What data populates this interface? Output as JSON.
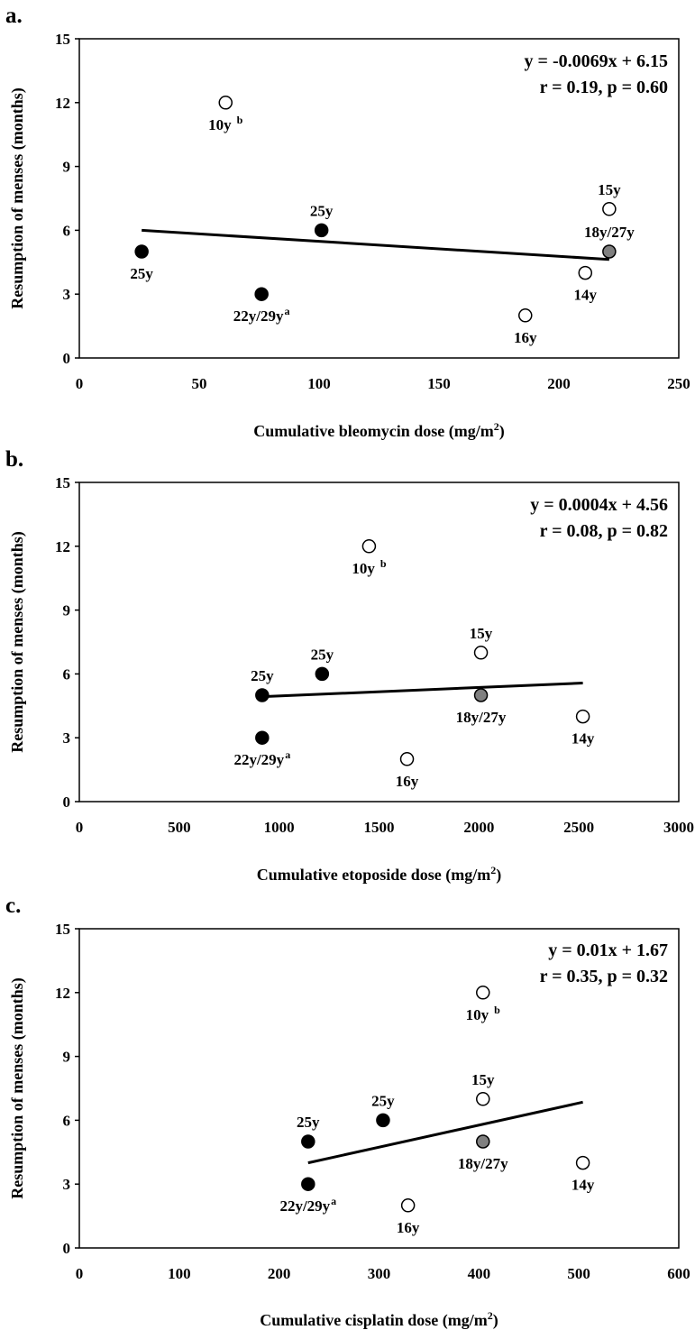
{
  "chart_data": [
    {
      "panel": "a.",
      "type": "scatter",
      "xlabel": "Cumulative bleomycin dose (mg/m",
      "xlabel_sup": "2",
      "xlabel_end": ")",
      "ylabel": "Resumption of menses (months)",
      "xlim": [
        0,
        250
      ],
      "ylim": [
        0,
        15
      ],
      "xticks": [
        0,
        50,
        100,
        150,
        200,
        250
      ],
      "yticks": [
        0,
        3,
        6,
        9,
        12,
        15
      ],
      "equation": "y = -0.0069x + 6.15",
      "stats": "r = 0.19, p = 0.60",
      "trendline": {
        "x": [
          26,
          221
        ],
        "y": [
          6.0,
          4.63
        ]
      },
      "points": [
        {
          "x": 61,
          "y": 12,
          "fill": "open",
          "label": "10y",
          "sup": "b",
          "label_pos": "below"
        },
        {
          "x": 26,
          "y": 5,
          "fill": "black",
          "label": "25y",
          "sup": "",
          "label_pos": "below"
        },
        {
          "x": 76,
          "y": 3,
          "fill": "black",
          "label": "22y/29y",
          "sup": "a",
          "label_pos": "below"
        },
        {
          "x": 101,
          "y": 6,
          "fill": "black",
          "label": "25y",
          "sup": "",
          "label_pos": "above"
        },
        {
          "x": 186,
          "y": 2,
          "fill": "open",
          "label": "16y",
          "sup": "",
          "label_pos": "below"
        },
        {
          "x": 211,
          "y": 4,
          "fill": "open",
          "label": "14y",
          "sup": "",
          "label_pos": "below"
        },
        {
          "x": 221,
          "y": 7,
          "fill": "open",
          "label": "15y",
          "sup": "",
          "label_pos": "above"
        },
        {
          "x": 221,
          "y": 5,
          "fill": "gray",
          "label": "18y/27y",
          "sup": "",
          "label_pos": "above"
        }
      ]
    },
    {
      "panel": "b.",
      "type": "scatter",
      "xlabel": "Cumulative etoposide dose (mg/m",
      "xlabel_sup": "2",
      "xlabel_end": ")",
      "ylabel": "Resumption of menses (months)",
      "xlim": [
        0,
        3000
      ],
      "ylim": [
        0,
        15
      ],
      "xticks": [
        0,
        500,
        1000,
        1500,
        2000,
        2500,
        3000
      ],
      "yticks": [
        0,
        3,
        6,
        9,
        12,
        15
      ],
      "equation": "y = 0.0004x + 4.56",
      "stats": "r = 0.08, p = 0.82",
      "trendline": {
        "x": [
          915,
          2520
        ],
        "y": [
          4.93,
          5.57
        ]
      },
      "points": [
        {
          "x": 1450,
          "y": 12,
          "fill": "open",
          "label": "10y",
          "sup": "b",
          "label_pos": "below"
        },
        {
          "x": 915,
          "y": 5,
          "fill": "black",
          "label": "25y",
          "sup": "",
          "label_pos": "above"
        },
        {
          "x": 915,
          "y": 3,
          "fill": "black",
          "label": "22y/29y",
          "sup": "a",
          "label_pos": "below"
        },
        {
          "x": 1215,
          "y": 6,
          "fill": "black",
          "label": "25y",
          "sup": "",
          "label_pos": "above"
        },
        {
          "x": 1640,
          "y": 2,
          "fill": "open",
          "label": "16y",
          "sup": "",
          "label_pos": "below"
        },
        {
          "x": 2010,
          "y": 7,
          "fill": "open",
          "label": "15y",
          "sup": "",
          "label_pos": "above"
        },
        {
          "x": 2010,
          "y": 5,
          "fill": "gray",
          "label": "18y/27y",
          "sup": "",
          "label_pos": "below"
        },
        {
          "x": 2520,
          "y": 4,
          "fill": "open",
          "label": "14y",
          "sup": "",
          "label_pos": "below"
        }
      ]
    },
    {
      "panel": "c.",
      "type": "scatter",
      "xlabel": "Cumulative cisplatin dose (mg/m",
      "xlabel_sup": "2",
      "xlabel_end": ")",
      "ylabel": "Resumption of menses (months)",
      "xlim": [
        0,
        600
      ],
      "ylim": [
        0,
        15
      ],
      "xticks": [
        0,
        100,
        200,
        300,
        400,
        500,
        600
      ],
      "yticks": [
        0,
        3,
        6,
        9,
        12,
        15
      ],
      "equation": "y = 0.01x + 1.67",
      "stats": "r = 0.35, p = 0.32",
      "trendline": {
        "x": [
          229,
          504
        ],
        "y": [
          4.0,
          6.85
        ]
      },
      "points": [
        {
          "x": 404,
          "y": 12,
          "fill": "open",
          "label": "10y",
          "sup": "b",
          "label_pos": "below"
        },
        {
          "x": 229,
          "y": 5,
          "fill": "black",
          "label": "25y",
          "sup": "",
          "label_pos": "above"
        },
        {
          "x": 229,
          "y": 3,
          "fill": "black",
          "label": "22y/29y",
          "sup": "a",
          "label_pos": "below"
        },
        {
          "x": 304,
          "y": 6,
          "fill": "black",
          "label": "25y",
          "sup": "",
          "label_pos": "above"
        },
        {
          "x": 329,
          "y": 2,
          "fill": "open",
          "label": "16y",
          "sup": "",
          "label_pos": "below"
        },
        {
          "x": 404,
          "y": 7,
          "fill": "open",
          "label": "15y",
          "sup": "",
          "label_pos": "above"
        },
        {
          "x": 404,
          "y": 5,
          "fill": "gray",
          "label": "18y/27y",
          "sup": "",
          "label_pos": "below"
        },
        {
          "x": 504,
          "y": 4,
          "fill": "open",
          "label": "14y",
          "sup": "",
          "label_pos": "below"
        }
      ]
    }
  ],
  "colors": {
    "black": "#000000",
    "gray": "#808080",
    "open": "#ffffff"
  }
}
